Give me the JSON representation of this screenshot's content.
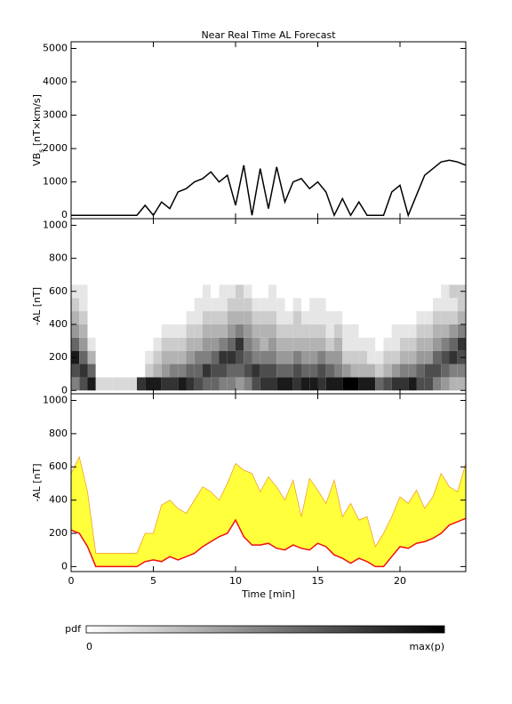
{
  "chart_data": [
    {
      "type": "line",
      "title": "Near Real Time AL Forecast",
      "y_label": [
        "VB",
        "s",
        " [nT×km/s]"
      ],
      "x": [
        0,
        0.5,
        1,
        1.5,
        2,
        2.5,
        3,
        3.5,
        4,
        4.5,
        5,
        5.5,
        6,
        6.5,
        7,
        7.5,
        8,
        8.5,
        9,
        9.5,
        10,
        10.5,
        11,
        11.5,
        12,
        12.5,
        13,
        13.5,
        14,
        14.5,
        15,
        15.5,
        16,
        16.5,
        17,
        17.5,
        18,
        18.5,
        19,
        19.5,
        20,
        20.5,
        21,
        21.5,
        22,
        22.5,
        23,
        23.5,
        24
      ],
      "series": [
        {
          "color": "#000000",
          "values": [
            0,
            0,
            0,
            0,
            0,
            0,
            0,
            0,
            0,
            300,
            0,
            400,
            200,
            700,
            800,
            1000,
            1100,
            1300,
            1000,
            1200,
            300,
            1500,
            0,
            1400,
            200,
            1450,
            400,
            1000,
            1100,
            800,
            1000,
            700,
            0,
            500,
            0,
            400,
            0,
            0,
            0,
            700,
            900,
            0,
            600,
            1200,
            1400,
            1600,
            1650,
            1600,
            1500
          ]
        }
      ],
      "xlim": [
        0,
        24
      ],
      "ylim": [
        -100,
        5200
      ],
      "yticks": [
        0,
        1000,
        2000,
        3000,
        4000,
        5000
      ]
    },
    {
      "type": "heatmap",
      "y_label": "-AL [nT]",
      "x_bins": [
        0,
        0.5,
        1,
        1.5,
        2,
        2.5,
        3,
        3.5,
        4,
        4.5,
        5,
        5.5,
        6,
        6.5,
        7,
        7.5,
        8,
        8.5,
        9,
        9.5,
        10,
        10.5,
        11,
        11.5,
        12,
        12.5,
        13,
        13.5,
        14,
        14.5,
        15,
        15.5,
        16,
        16.5,
        17,
        17.5,
        18,
        18.5,
        19,
        19.5,
        20,
        20.5,
        21,
        21.5,
        22,
        22.5,
        23,
        23.5,
        24
      ],
      "y_bins": [
        0,
        80,
        160,
        240,
        320,
        400,
        480,
        560,
        640
      ],
      "values": [
        [
          0.5,
          0.7,
          0.9,
          0.15,
          0.15,
          0.15,
          0.15,
          0.15,
          0.8,
          0.9,
          0.9,
          0.8,
          0.8,
          0.9,
          0.8,
          0.7,
          0.6,
          0.6,
          0.5,
          0.5,
          0.4,
          0.5,
          0.7,
          0.8,
          0.8,
          0.9,
          0.9,
          0.8,
          0.9,
          0.9,
          0.8,
          0.9,
          0.9,
          1,
          1,
          0.9,
          0.9,
          0.6,
          0.7,
          0.8,
          0.8,
          0.9,
          0.7,
          0.7,
          0.5,
          0.4,
          0.3,
          0.3
        ],
        [
          0.7,
          0.8,
          0.6,
          0,
          0,
          0,
          0,
          0,
          0,
          0.2,
          0.3,
          0.4,
          0.5,
          0.5,
          0.6,
          0.6,
          0.8,
          0.7,
          0.7,
          0.6,
          0.6,
          0.7,
          0.8,
          0.7,
          0.7,
          0.6,
          0.6,
          0.7,
          0.6,
          0.6,
          0.7,
          0.6,
          0.5,
          0.4,
          0.3,
          0.3,
          0.3,
          0.2,
          0.3,
          0.4,
          0.5,
          0.5,
          0.6,
          0.7,
          0.7,
          0.6,
          0.5,
          0.5
        ],
        [
          0.9,
          0.6,
          0.3,
          0,
          0,
          0,
          0,
          0,
          0,
          0.1,
          0.2,
          0.3,
          0.3,
          0.3,
          0.4,
          0.5,
          0.5,
          0.6,
          0.8,
          0.8,
          0.7,
          0.6,
          0.5,
          0.5,
          0.5,
          0.4,
          0.4,
          0.5,
          0.4,
          0.4,
          0.5,
          0.4,
          0.4,
          0.2,
          0.2,
          0.2,
          0.1,
          0.1,
          0.2,
          0.2,
          0.3,
          0.3,
          0.4,
          0.4,
          0.6,
          0.7,
          0.8,
          0.7
        ],
        [
          0.6,
          0.4,
          0.1,
          0,
          0,
          0,
          0,
          0,
          0,
          0,
          0.1,
          0.2,
          0.2,
          0.2,
          0.3,
          0.3,
          0.4,
          0.4,
          0.5,
          0.6,
          0.8,
          0.5,
          0.4,
          0.3,
          0.4,
          0.3,
          0.3,
          0.3,
          0.3,
          0.3,
          0.3,
          0.2,
          0.3,
          0.1,
          0.1,
          0.1,
          0.1,
          0,
          0.1,
          0.1,
          0.2,
          0.2,
          0.3,
          0.3,
          0.4,
          0.5,
          0.6,
          0.8
        ],
        [
          0.4,
          0.3,
          0,
          0,
          0,
          0,
          0,
          0,
          0,
          0,
          0,
          0.1,
          0.1,
          0.1,
          0.2,
          0.2,
          0.3,
          0.3,
          0.3,
          0.4,
          0.5,
          0.4,
          0.3,
          0.3,
          0.3,
          0.2,
          0.2,
          0.2,
          0.2,
          0.2,
          0.2,
          0.1,
          0.2,
          0.1,
          0.1,
          0,
          0,
          0,
          0,
          0.1,
          0.1,
          0.1,
          0.2,
          0.2,
          0.3,
          0.3,
          0.4,
          0.5
        ],
        [
          0.3,
          0.2,
          0,
          0,
          0,
          0,
          0,
          0,
          0,
          0,
          0,
          0,
          0,
          0,
          0.1,
          0.1,
          0.2,
          0.2,
          0.2,
          0.3,
          0.3,
          0.3,
          0.2,
          0.2,
          0.2,
          0.1,
          0.1,
          0.2,
          0.1,
          0.1,
          0.1,
          0.1,
          0.1,
          0,
          0,
          0,
          0,
          0,
          0,
          0,
          0,
          0,
          0.1,
          0.1,
          0.2,
          0.2,
          0.2,
          0.3
        ],
        [
          0.2,
          0.1,
          0,
          0,
          0,
          0,
          0,
          0,
          0,
          0,
          0,
          0,
          0,
          0,
          0,
          0.1,
          0.1,
          0.1,
          0.1,
          0.2,
          0.2,
          0.2,
          0.1,
          0.1,
          0.1,
          0.1,
          0,
          0.1,
          0,
          0.1,
          0.1,
          0,
          0,
          0,
          0,
          0,
          0,
          0,
          0,
          0,
          0,
          0,
          0,
          0,
          0.1,
          0.1,
          0.1,
          0.2
        ],
        [
          0.1,
          0.1,
          0,
          0,
          0,
          0,
          0,
          0,
          0,
          0,
          0,
          0,
          0,
          0,
          0,
          0,
          0.1,
          0,
          0.1,
          0.1,
          0.2,
          0.1,
          0,
          0,
          0.1,
          0,
          0,
          0,
          0,
          0,
          0,
          0,
          0,
          0,
          0,
          0,
          0,
          0,
          0,
          0,
          0,
          0,
          0,
          0,
          0,
          0.1,
          0.2,
          0.2
        ]
      ],
      "colormap": [
        "#ffffff",
        "#000000"
      ],
      "clim": [
        0,
        1
      ],
      "colorbar_label": "pdf",
      "cticks": [
        0,
        {
          "value": 1,
          "label": "max(p)"
        }
      ],
      "xlim": [
        0,
        24
      ],
      "ylim": [
        -20,
        1040
      ],
      "yticks": [
        0,
        200,
        400,
        600,
        800,
        1000
      ]
    },
    {
      "type": "band",
      "y_label": "-AL [nT]",
      "x_label": "Time [min]",
      "x": [
        0,
        0.5,
        1,
        1.5,
        2,
        2.5,
        3,
        3.5,
        4,
        4.5,
        5,
        5.5,
        6,
        6.5,
        7,
        7.5,
        8,
        8.5,
        9,
        9.5,
        10,
        10.5,
        11,
        11.5,
        12,
        12.5,
        13,
        13.5,
        14,
        14.5,
        15,
        15.5,
        16,
        16.5,
        17,
        17.5,
        18,
        18.5,
        19,
        19.5,
        20,
        20.5,
        21,
        21.5,
        22,
        22.5,
        23,
        23.5,
        24
      ],
      "band": {
        "color": "#ffff3c",
        "edge_color": "#f0a030",
        "values": [
          560,
          660,
          450,
          80,
          80,
          80,
          80,
          80,
          80,
          200,
          200,
          370,
          400,
          350,
          320,
          400,
          480,
          450,
          400,
          500,
          620,
          580,
          560,
          450,
          540,
          480,
          400,
          520,
          300,
          530,
          460,
          380,
          520,
          300,
          380,
          280,
          300,
          120,
          200,
          300,
          420,
          380,
          460,
          350,
          420,
          560,
          480,
          450,
          620
        ]
      },
      "series": [
        {
          "color": "#ee1111",
          "values": [
            220,
            200,
            120,
            0,
            0,
            0,
            0,
            0,
            0,
            30,
            40,
            30,
            60,
            40,
            60,
            80,
            120,
            150,
            180,
            200,
            280,
            180,
            130,
            130,
            140,
            110,
            100,
            130,
            110,
            100,
            140,
            120,
            70,
            50,
            20,
            50,
            30,
            0,
            0,
            60,
            120,
            110,
            140,
            150,
            170,
            200,
            250,
            270,
            290
          ]
        }
      ],
      "xlim": [
        0,
        24
      ],
      "ylim": [
        -30,
        1040
      ],
      "yticks": [
        0,
        200,
        400,
        600,
        800,
        1000
      ],
      "xticks": [
        0,
        5,
        10,
        15,
        20
      ]
    }
  ]
}
